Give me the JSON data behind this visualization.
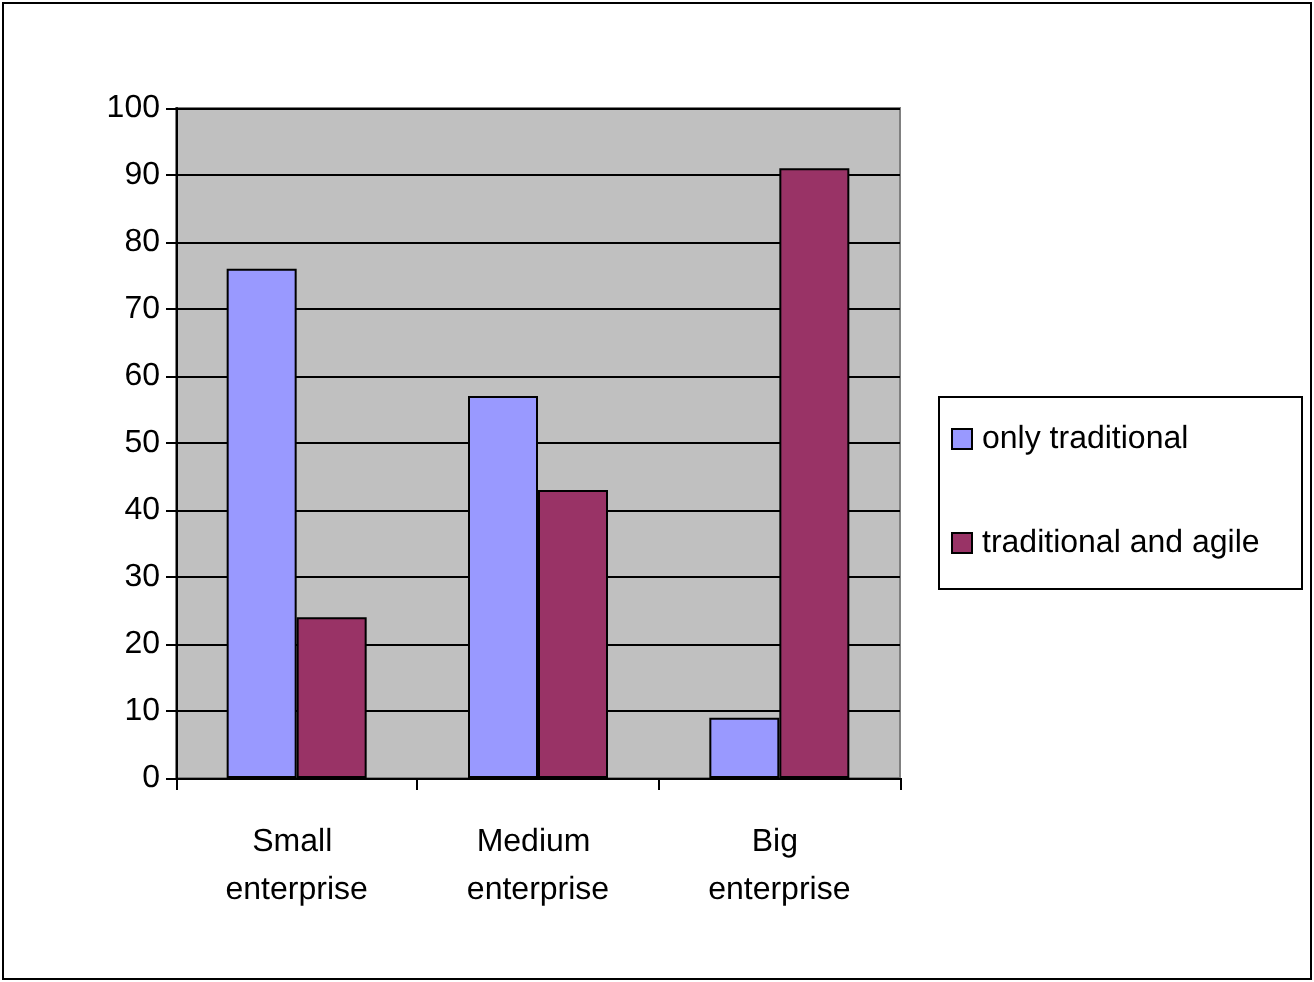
{
  "chart_data": {
    "type": "bar",
    "categories": [
      "Small enterprise",
      "Medium enterprise",
      "Big enterprise"
    ],
    "series": [
      {
        "name": "only traditional",
        "color": "#9999ff",
        "values": [
          76,
          57,
          9
        ]
      },
      {
        "name": "traditional and agile",
        "color": "#993366",
        "values": [
          24,
          43,
          91
        ]
      }
    ],
    "ylim": [
      0,
      100
    ],
    "yticks": [
      0,
      10,
      20,
      30,
      40,
      50,
      60,
      70,
      80,
      90,
      100
    ],
    "grid": "y",
    "legend": "right"
  }
}
